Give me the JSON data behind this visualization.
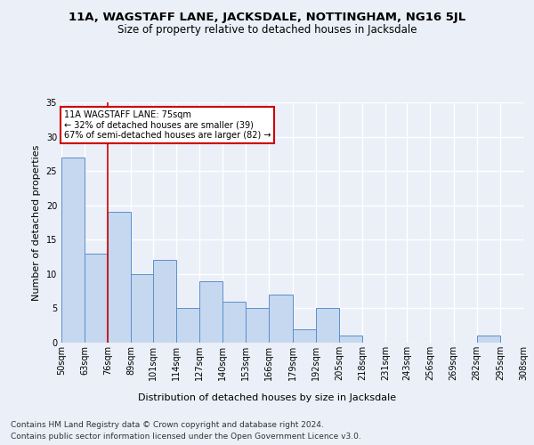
{
  "title": "11A, WAGSTAFF LANE, JACKSDALE, NOTTINGHAM, NG16 5JL",
  "subtitle": "Size of property relative to detached houses in Jacksdale",
  "xlabel": "Distribution of detached houses by size in Jacksdale",
  "ylabel": "Number of detached properties",
  "footer_line1": "Contains HM Land Registry data © Crown copyright and database right 2024.",
  "footer_line2": "Contains public sector information licensed under the Open Government Licence v3.0.",
  "bins": [
    50,
    63,
    76,
    89,
    101,
    114,
    127,
    140,
    153,
    166,
    179,
    192,
    205,
    218,
    231,
    243,
    256,
    269,
    282,
    295,
    308
  ],
  "bin_labels": [
    "50sqm",
    "63sqm",
    "76sqm",
    "89sqm",
    "101sqm",
    "114sqm",
    "127sqm",
    "140sqm",
    "153sqm",
    "166sqm",
    "179sqm",
    "192sqm",
    "205sqm",
    "218sqm",
    "231sqm",
    "243sqm",
    "256sqm",
    "269sqm",
    "282sqm",
    "295sqm",
    "308sqm"
  ],
  "values": [
    27,
    13,
    19,
    10,
    12,
    5,
    9,
    6,
    5,
    7,
    2,
    5,
    1,
    0,
    0,
    0,
    0,
    0,
    1,
    0
  ],
  "bar_color": "#c5d8f0",
  "bar_edge_color": "#5b8fc9",
  "property_line_x": 76,
  "property_line_color": "#cc0000",
  "annotation_text": "11A WAGSTAFF LANE: 75sqm\n← 32% of detached houses are smaller (39)\n67% of semi-detached houses are larger (82) →",
  "annotation_box_color": "#cc0000",
  "ylim": [
    0,
    35
  ],
  "yticks": [
    0,
    5,
    10,
    15,
    20,
    25,
    30,
    35
  ],
  "bg_color": "#eaeff8",
  "plot_bg_color": "#eaeff8",
  "grid_color": "#ffffff",
  "title_fontsize": 9.5,
  "subtitle_fontsize": 8.5,
  "axis_label_fontsize": 8,
  "tick_fontsize": 7,
  "footer_fontsize": 6.5
}
